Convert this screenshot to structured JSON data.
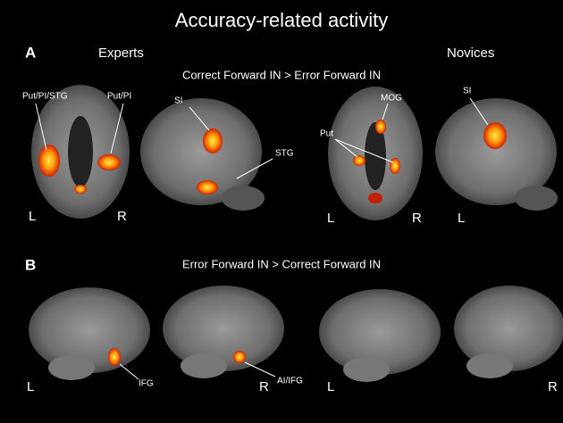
{
  "title": "Accuracy-related activity",
  "panels": [
    {
      "label": "A",
      "groups": [
        "Experts",
        "Novices"
      ],
      "contrast": "Correct Forward IN > Error Forward IN",
      "annotations": [
        "Put/PI/STG",
        "Put/PI",
        "SI",
        "STG",
        "MOG",
        "Put",
        "SI"
      ],
      "orientation_labels": [
        "L",
        "R",
        "L",
        "R",
        "L"
      ]
    },
    {
      "label": "B",
      "contrast": "Error Forward IN > Correct Forward IN",
      "annotations": [
        "IFG",
        "AI/IFG"
      ],
      "orientation_labels": [
        "L",
        "R",
        "L",
        "R"
      ]
    }
  ]
}
